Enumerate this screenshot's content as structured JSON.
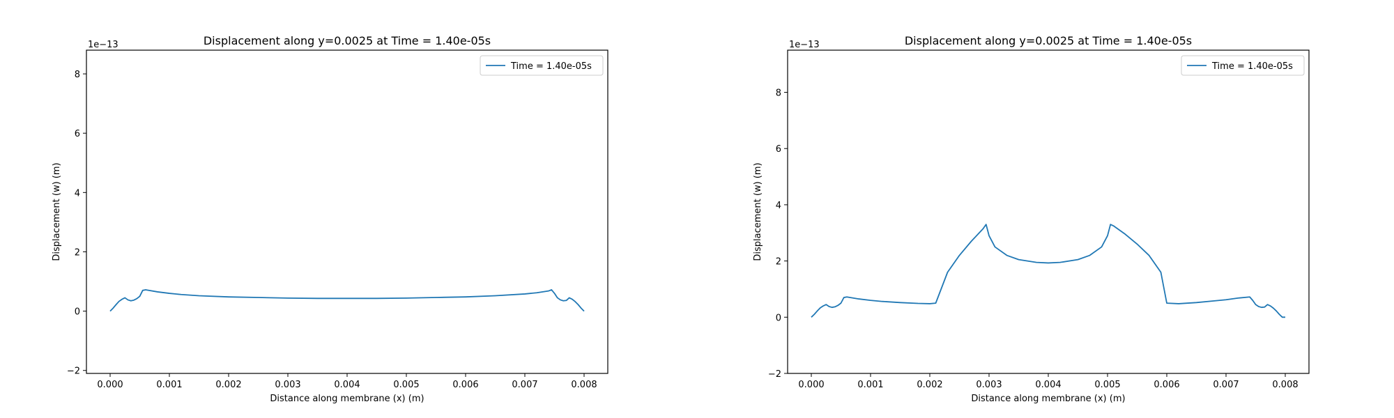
{
  "chart_data": [
    {
      "type": "line",
      "title": "Displacement along y=0.0025 at Time = 1.40e-05s",
      "xlabel": "Distance along membrane (x) (m)",
      "ylabel": "Displacement (w) (m)",
      "offset_text": "1e−13",
      "xlim": [
        -0.0004,
        0.0084
      ],
      "ylim": [
        -2.1,
        8.8
      ],
      "xticks": [
        0.0,
        0.001,
        0.002,
        0.003,
        0.004,
        0.005,
        0.006,
        0.007,
        0.008
      ],
      "xtick_labels": [
        "0.000",
        "0.001",
        "0.002",
        "0.003",
        "0.004",
        "0.005",
        "0.006",
        "0.007",
        "0.008"
      ],
      "yticks": [
        -2,
        0,
        2,
        4,
        6,
        8
      ],
      "ytick_labels": [
        "−2",
        "0",
        "2",
        "4",
        "6",
        "8"
      ],
      "legend_position": "upper right",
      "grid": false,
      "series": [
        {
          "name": "Time = 1.40e-05s",
          "color": "#1f77b4",
          "x": [
            0.0,
            5e-05,
            0.0001,
            0.00015,
            0.0002,
            0.00025,
            0.0003,
            0.00035,
            0.0004,
            0.00045,
            0.0005,
            0.00055,
            0.0006,
            0.0008,
            0.001,
            0.0012,
            0.0015,
            0.002,
            0.0025,
            0.003,
            0.0035,
            0.004,
            0.0045,
            0.005,
            0.0055,
            0.006,
            0.0065,
            0.007,
            0.0072,
            0.0074,
            0.00745,
            0.0075,
            0.00755,
            0.0076,
            0.00765,
            0.0077,
            0.00775,
            0.0078,
            0.00785,
            0.0079,
            0.00795,
            0.008
          ],
          "y": [
            0.0,
            0.1,
            0.22,
            0.33,
            0.4,
            0.45,
            0.38,
            0.35,
            0.37,
            0.42,
            0.5,
            0.7,
            0.72,
            0.65,
            0.6,
            0.56,
            0.52,
            0.48,
            0.46,
            0.44,
            0.43,
            0.43,
            0.43,
            0.44,
            0.46,
            0.48,
            0.52,
            0.58,
            0.62,
            0.68,
            0.72,
            0.6,
            0.45,
            0.38,
            0.35,
            0.36,
            0.45,
            0.4,
            0.32,
            0.22,
            0.1,
            0.0
          ]
        }
      ]
    },
    {
      "type": "line",
      "title": "Displacement along y=0.0025 at Time = 1.40e-05s",
      "xlabel": "Distance along membrane (x) (m)",
      "ylabel": "Displacement (w) (m)",
      "offset_text": "1e−13",
      "xlim": [
        -0.0004,
        0.0084
      ],
      "ylim": [
        -2.0,
        9.5
      ],
      "xticks": [
        0.0,
        0.001,
        0.002,
        0.003,
        0.004,
        0.005,
        0.006,
        0.007,
        0.008
      ],
      "xtick_labels": [
        "0.000",
        "0.001",
        "0.002",
        "0.003",
        "0.004",
        "0.005",
        "0.006",
        "0.007",
        "0.008"
      ],
      "yticks": [
        -2,
        0,
        2,
        4,
        6,
        8
      ],
      "ytick_labels": [
        "−2",
        "0",
        "2",
        "4",
        "6",
        "8"
      ],
      "legend_position": "upper right",
      "grid": false,
      "series": [
        {
          "name": "Time = 1.40e-05s",
          "color": "#1f77b4",
          "x": [
            0.0,
            5e-05,
            0.0001,
            0.00015,
            0.0002,
            0.00025,
            0.0003,
            0.00035,
            0.0004,
            0.00045,
            0.0005,
            0.00055,
            0.0006,
            0.0008,
            0.001,
            0.0012,
            0.0015,
            0.0018,
            0.002,
            0.0021,
            0.0023,
            0.0025,
            0.0027,
            0.0029,
            0.00295,
            0.003,
            0.0031,
            0.0033,
            0.0035,
            0.0038,
            0.004,
            0.0042,
            0.0045,
            0.0047,
            0.0049,
            0.005,
            0.00505,
            0.0051,
            0.0053,
            0.0055,
            0.0057,
            0.0059,
            0.006,
            0.0062,
            0.0065,
            0.0068,
            0.007,
            0.0072,
            0.0074,
            0.00745,
            0.0075,
            0.00755,
            0.0076,
            0.00765,
            0.0077,
            0.00775,
            0.0078,
            0.00785,
            0.0079,
            0.00795,
            0.008
          ],
          "y": [
            0.0,
            0.1,
            0.22,
            0.33,
            0.4,
            0.45,
            0.38,
            0.35,
            0.37,
            0.42,
            0.5,
            0.7,
            0.72,
            0.65,
            0.6,
            0.56,
            0.52,
            0.49,
            0.48,
            0.5,
            1.6,
            2.2,
            2.7,
            3.15,
            3.3,
            2.9,
            2.5,
            2.2,
            2.05,
            1.95,
            1.93,
            1.95,
            2.05,
            2.2,
            2.5,
            2.9,
            3.3,
            3.25,
            2.95,
            2.6,
            2.2,
            1.6,
            0.5,
            0.48,
            0.52,
            0.58,
            0.62,
            0.68,
            0.72,
            0.6,
            0.45,
            0.38,
            0.35,
            0.36,
            0.45,
            0.4,
            0.32,
            0.22,
            0.1,
            0.0,
            0.0
          ]
        }
      ]
    }
  ]
}
